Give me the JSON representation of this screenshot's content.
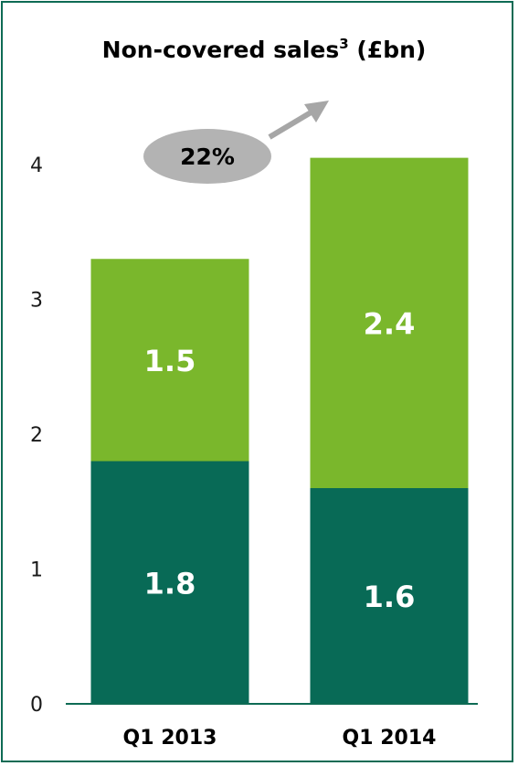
{
  "chart_data": {
    "type": "bar",
    "stacked": true,
    "title": "Non-covered sales",
    "title_superscript": "3",
    "title_suffix": " (£bn)",
    "categories": [
      "Q1 2013",
      "Q1 2014"
    ],
    "series": [
      {
        "values": [
          1.8,
          1.6
        ],
        "color": "#086a56"
      },
      {
        "values": [
          1.5,
          2.4
        ],
        "color": "#7ab72c"
      }
    ],
    "ylim": [
      0,
      4
    ],
    "yticks": [
      "0",
      "1",
      "2",
      "3",
      "4"
    ],
    "totals": [
      3.3,
      4.05
    ],
    "annotation": {
      "text": "22%"
    },
    "grid": false,
    "colors": {
      "frame": "#0e6b54",
      "axis": "#0e6b54",
      "annotation": "#b3b3b3"
    }
  }
}
